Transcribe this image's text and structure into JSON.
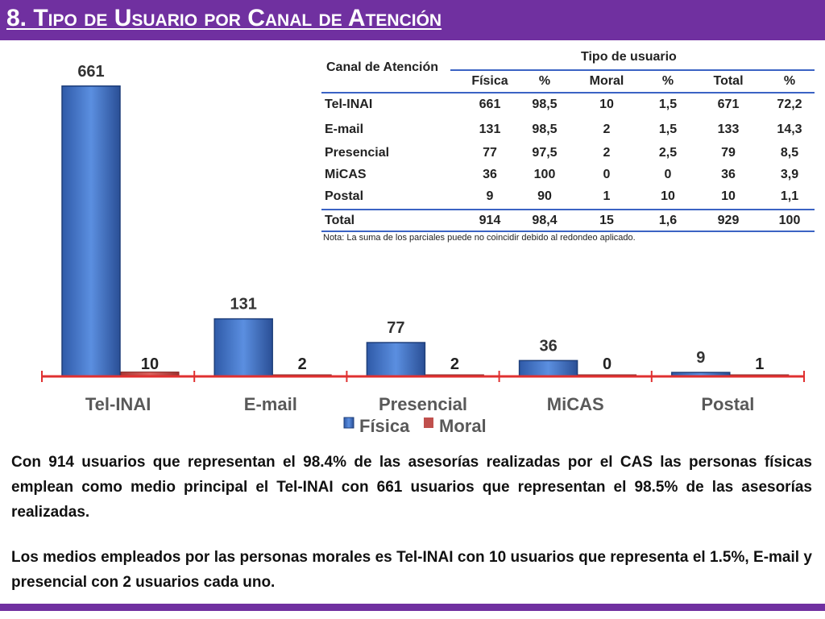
{
  "header": {
    "title": "8. Tipo de Usuario por Canal de Atención"
  },
  "chart_data": {
    "type": "bar",
    "categories": [
      "Tel-INAI",
      "E-mail",
      "Presencial",
      "MiCAS",
      "Postal"
    ],
    "series": [
      {
        "name": "Física",
        "values": [
          661,
          131,
          77,
          36,
          9
        ]
      },
      {
        "name": "Moral",
        "values": [
          10,
          2,
          2,
          0,
          1
        ]
      }
    ],
    "title": "",
    "xlabel": "",
    "ylabel": "",
    "ylim": [
      0,
      700
    ],
    "legend_position": "bottom",
    "grid": false,
    "colors": {
      "fisica": "#4472c4",
      "moral": "#c0504d",
      "axis": "#e03030"
    }
  },
  "table": {
    "corner_header": "Canal de Atención",
    "group_header": "Tipo de usuario",
    "columns": [
      "Física",
      "%",
      "Moral",
      "%",
      "Total",
      "%"
    ],
    "rows": [
      {
        "label": "Tel-INAI",
        "cells": [
          "661",
          "98,5",
          "10",
          "1,5",
          "671",
          "72,2"
        ]
      },
      {
        "label": "E-mail",
        "cells": [
          "131",
          "98,5",
          "2",
          "1,5",
          "133",
          "14,3"
        ]
      },
      {
        "label": "Presencial",
        "cells": [
          "77",
          "97,5",
          "2",
          "2,5",
          "79",
          "8,5"
        ]
      },
      {
        "label": "MiCAS",
        "cells": [
          "36",
          "100",
          "0",
          "0",
          "36",
          "3,9"
        ]
      },
      {
        "label": "Postal",
        "cells": [
          "9",
          "90",
          "1",
          "10",
          "10",
          "1,1"
        ]
      }
    ],
    "total": {
      "label": "Total",
      "cells": [
        "914",
        "98,4",
        "15",
        "1,6",
        "929",
        "100"
      ]
    },
    "note": "Nota: La suma de los parciales puede no coincidir debido al redondeo aplicado."
  },
  "body": {
    "paragraph1": "Con 914 usuarios que representan el 98.4% de las asesorías realizadas por el CAS las personas físicas emplean como medio principal el Tel-INAI con 661 usuarios que representan el 98.5% de las asesorías realizadas.",
    "paragraph2": "Los medios empleados por las personas morales es Tel-INAI con 10 usuarios que representa el 1.5%, E-mail y presencial con 2 usuarios cada uno."
  }
}
